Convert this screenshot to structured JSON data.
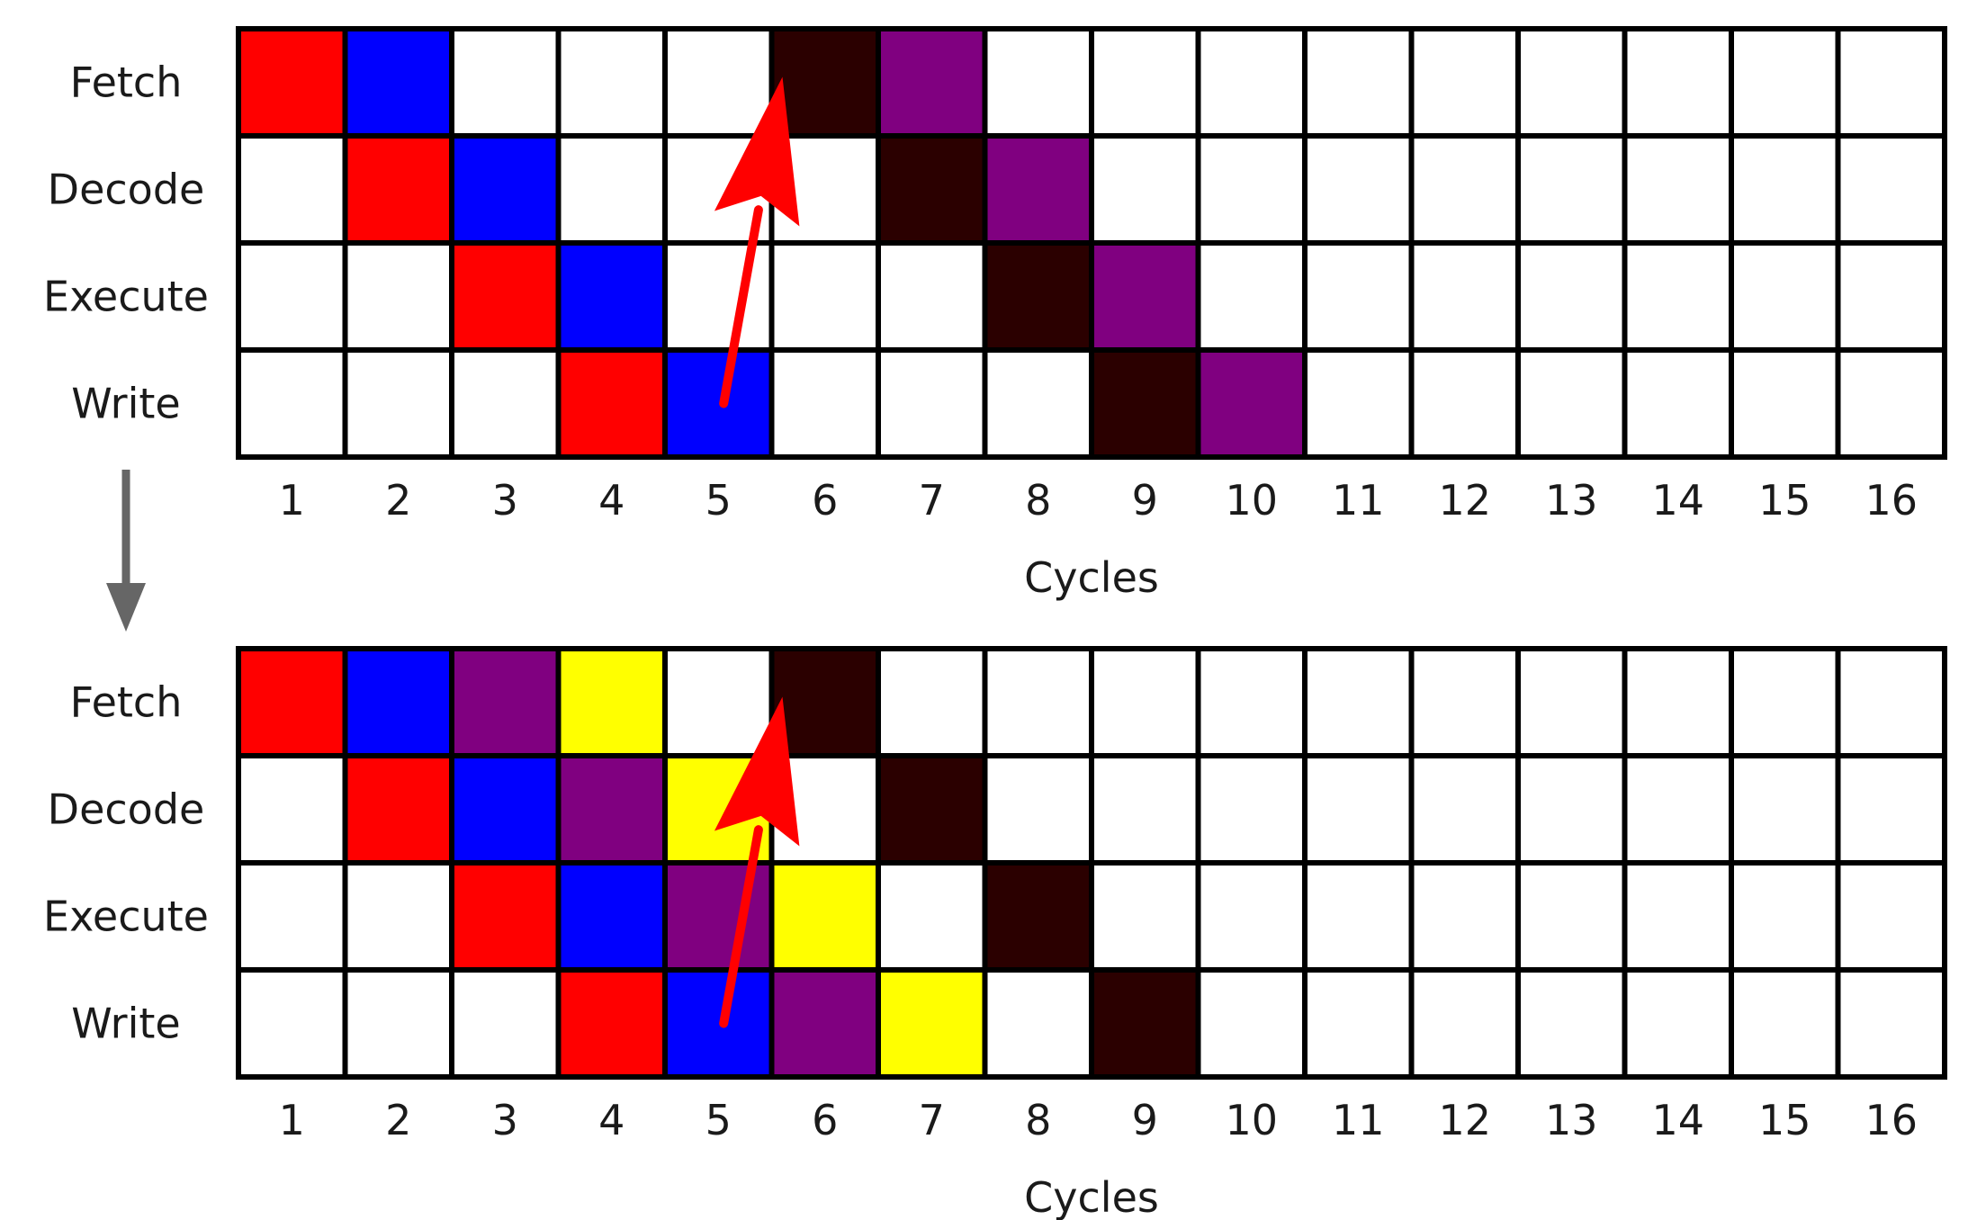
{
  "diagrams": [
    {
      "stages": [
        "Fetch",
        "Decode",
        "Execute",
        "Write"
      ],
      "cycles": [
        "1",
        "2",
        "3",
        "4",
        "5",
        "6",
        "7",
        "8",
        "9",
        "10",
        "11",
        "12",
        "13",
        "14",
        "15",
        "16"
      ],
      "xlabel": "Cycles",
      "instructions": [
        {
          "color": "#ff0000",
          "occupancy": [
            {
              "stage": 0,
              "cycle": 1
            },
            {
              "stage": 1,
              "cycle": 2
            },
            {
              "stage": 2,
              "cycle": 3
            },
            {
              "stage": 3,
              "cycle": 4
            }
          ]
        },
        {
          "color": "#0000ff",
          "occupancy": [
            {
              "stage": 0,
              "cycle": 2
            },
            {
              "stage": 1,
              "cycle": 3
            },
            {
              "stage": 2,
              "cycle": 4
            },
            {
              "stage": 3,
              "cycle": 5
            }
          ]
        },
        {
          "color": "#2b0000",
          "occupancy": [
            {
              "stage": 0,
              "cycle": 6
            },
            {
              "stage": 1,
              "cycle": 7
            },
            {
              "stage": 2,
              "cycle": 8
            },
            {
              "stage": 3,
              "cycle": 9
            }
          ]
        },
        {
          "color": "#800080",
          "occupancy": [
            {
              "stage": 0,
              "cycle": 7
            },
            {
              "stage": 1,
              "cycle": 8
            },
            {
              "stage": 2,
              "cycle": 9
            },
            {
              "stage": 3,
              "cycle": 10
            }
          ]
        }
      ]
    },
    {
      "stages": [
        "Fetch",
        "Decode",
        "Execute",
        "Write"
      ],
      "cycles": [
        "1",
        "2",
        "3",
        "4",
        "5",
        "6",
        "7",
        "8",
        "9",
        "10",
        "11",
        "12",
        "13",
        "14",
        "15",
        "16"
      ],
      "xlabel": "Cycles",
      "instructions": [
        {
          "color": "#ff0000",
          "occupancy": [
            {
              "stage": 0,
              "cycle": 1
            },
            {
              "stage": 1,
              "cycle": 2
            },
            {
              "stage": 2,
              "cycle": 3
            },
            {
              "stage": 3,
              "cycle": 4
            }
          ]
        },
        {
          "color": "#0000ff",
          "occupancy": [
            {
              "stage": 0,
              "cycle": 2
            },
            {
              "stage": 1,
              "cycle": 3
            },
            {
              "stage": 2,
              "cycle": 4
            },
            {
              "stage": 3,
              "cycle": 5
            }
          ]
        },
        {
          "color": "#800080",
          "occupancy": [
            {
              "stage": 0,
              "cycle": 3
            },
            {
              "stage": 1,
              "cycle": 4
            },
            {
              "stage": 2,
              "cycle": 5
            },
            {
              "stage": 3,
              "cycle": 6
            }
          ]
        },
        {
          "color": "#ffff00",
          "occupancy": [
            {
              "stage": 0,
              "cycle": 4
            },
            {
              "stage": 1,
              "cycle": 5
            },
            {
              "stage": 2,
              "cycle": 6
            },
            {
              "stage": 3,
              "cycle": 7
            }
          ]
        },
        {
          "color": "#2b0000",
          "occupancy": [
            {
              "stage": 0,
              "cycle": 6
            },
            {
              "stage": 1,
              "cycle": 7
            },
            {
              "stage": 2,
              "cycle": 8
            },
            {
              "stage": 3,
              "cycle": 9
            }
          ]
        }
      ]
    }
  ],
  "forwarding_arrow": {
    "from": {
      "stage": 3,
      "cycle": 5
    },
    "to": {
      "stage": 0,
      "cycle": 6
    },
    "color": "#ff0000"
  },
  "transition_arrow": {
    "color": "#666666"
  }
}
